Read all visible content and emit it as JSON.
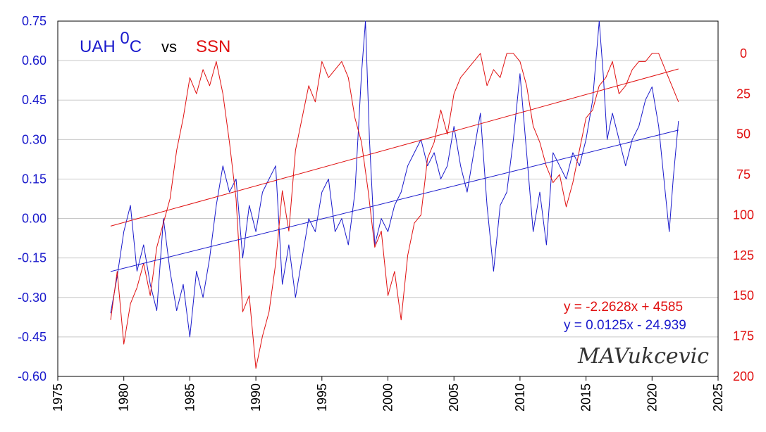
{
  "chart_data": {
    "type": "line",
    "title_parts": {
      "uah": "UAH ",
      "uah_sup": "0",
      "uah_unit": "C",
      "vs": "vs",
      "ssn": "SSN"
    },
    "x_ticks": [
      "1975",
      "1980",
      "1985",
      "1990",
      "1995",
      "2000",
      "2005",
      "2010",
      "2015",
      "2020",
      "2025"
    ],
    "x_range": [
      1975,
      2025
    ],
    "y_left_ticks": [
      "0.75",
      "0.60",
      "0.45",
      "0.30",
      "0.15",
      "0.00",
      "-0.15",
      "-0.30",
      "-0.45",
      "-0.60"
    ],
    "y_left_range": [
      -0.6,
      0.75
    ],
    "y_right_ticks": [
      "0",
      "25",
      "50",
      "75",
      "100",
      "125",
      "150",
      "175",
      "200"
    ],
    "y_right_range_inverted": [
      200,
      -20
    ],
    "grid": "horizontal",
    "colors": {
      "uah": "#1a1acc",
      "ssn": "#e01010"
    },
    "series": [
      {
        "name": "UAH",
        "axis": "left",
        "x": [
          1979.0,
          1979.5,
          1980.0,
          1980.5,
          1981.0,
          1981.5,
          1982.0,
          1982.5,
          1983.0,
          1983.5,
          1984.0,
          1984.5,
          1985.0,
          1985.5,
          1986.0,
          1986.5,
          1987.0,
          1987.5,
          1988.0,
          1988.5,
          1989.0,
          1989.5,
          1990.0,
          1990.5,
          1991.0,
          1991.5,
          1992.0,
          1992.5,
          1993.0,
          1993.5,
          1994.0,
          1994.5,
          1995.0,
          1995.5,
          1996.0,
          1996.5,
          1997.0,
          1997.5,
          1998.0,
          1998.3,
          1998.6,
          1999.0,
          1999.5,
          2000.0,
          2000.5,
          2001.0,
          2001.5,
          2002.0,
          2002.5,
          2003.0,
          2003.5,
          2004.0,
          2004.5,
          2005.0,
          2005.5,
          2006.0,
          2006.5,
          2007.0,
          2007.5,
          2008.0,
          2008.5,
          2009.0,
          2009.5,
          2010.0,
          2010.5,
          2011.0,
          2011.5,
          2012.0,
          2012.5,
          2013.0,
          2013.5,
          2014.0,
          2014.5,
          2015.0,
          2015.5,
          2016.0,
          2016.3,
          2016.6,
          2017.0,
          2017.5,
          2018.0,
          2018.5,
          2019.0,
          2019.5,
          2020.0,
          2020.5,
          2021.0,
          2021.3,
          2021.6,
          2022.0
        ],
        "values": [
          -0.36,
          -0.22,
          -0.05,
          0.05,
          -0.2,
          -0.1,
          -0.25,
          -0.35,
          0.0,
          -0.2,
          -0.35,
          -0.25,
          -0.45,
          -0.2,
          -0.3,
          -0.15,
          0.05,
          0.2,
          0.1,
          0.15,
          -0.15,
          0.05,
          -0.05,
          0.1,
          0.15,
          0.2,
          -0.25,
          -0.1,
          -0.3,
          -0.15,
          0.0,
          -0.05,
          0.1,
          0.15,
          -0.05,
          0.0,
          -0.1,
          0.1,
          0.55,
          0.75,
          0.3,
          -0.1,
          0.0,
          -0.05,
          0.05,
          0.1,
          0.2,
          0.25,
          0.3,
          0.2,
          0.25,
          0.15,
          0.2,
          0.35,
          0.2,
          0.1,
          0.25,
          0.4,
          0.05,
          -0.2,
          0.05,
          0.1,
          0.3,
          0.55,
          0.25,
          -0.05,
          0.1,
          -0.1,
          0.25,
          0.2,
          0.15,
          0.25,
          0.2,
          0.3,
          0.45,
          0.75,
          0.55,
          0.3,
          0.4,
          0.3,
          0.2,
          0.3,
          0.35,
          0.45,
          0.5,
          0.35,
          0.1,
          -0.05,
          0.15,
          0.37
        ]
      },
      {
        "name": "SSN",
        "axis": "right",
        "x": [
          1979.0,
          1979.5,
          1980.0,
          1980.5,
          1981.0,
          1981.5,
          1982.0,
          1982.5,
          1983.0,
          1983.5,
          1984.0,
          1984.5,
          1985.0,
          1985.5,
          1986.0,
          1986.5,
          1987.0,
          1987.5,
          1988.0,
          1988.5,
          1989.0,
          1989.5,
          1990.0,
          1990.5,
          1991.0,
          1991.5,
          1992.0,
          1992.5,
          1993.0,
          1993.5,
          1994.0,
          1994.5,
          1995.0,
          1995.5,
          1996.0,
          1996.5,
          1997.0,
          1997.5,
          1998.0,
          1998.5,
          1999.0,
          1999.5,
          2000.0,
          2000.5,
          2001.0,
          2001.5,
          2002.0,
          2002.5,
          2003.0,
          2003.5,
          2004.0,
          2004.5,
          2005.0,
          2005.5,
          2006.0,
          2006.5,
          2007.0,
          2007.5,
          2008.0,
          2008.5,
          2009.0,
          2009.5,
          2010.0,
          2010.5,
          2011.0,
          2011.5,
          2012.0,
          2012.5,
          2013.0,
          2013.5,
          2014.0,
          2014.5,
          2015.0,
          2015.5,
          2016.0,
          2016.5,
          2017.0,
          2017.5,
          2018.0,
          2018.5,
          2019.0,
          2019.5,
          2020.0,
          2020.5,
          2021.0,
          2021.5,
          2022.0
        ],
        "values": [
          165,
          135,
          180,
          155,
          145,
          130,
          150,
          120,
          105,
          90,
          60,
          40,
          15,
          25,
          10,
          20,
          5,
          25,
          55,
          90,
          160,
          150,
          195,
          175,
          160,
          130,
          85,
          110,
          60,
          40,
          20,
          30,
          5,
          15,
          10,
          5,
          15,
          40,
          55,
          85,
          120,
          110,
          150,
          135,
          165,
          125,
          105,
          100,
          65,
          55,
          35,
          50,
          25,
          15,
          10,
          5,
          0,
          20,
          10,
          15,
          0,
          0,
          5,
          20,
          45,
          55,
          70,
          80,
          75,
          95,
          80,
          60,
          40,
          35,
          20,
          15,
          5,
          25,
          20,
          10,
          5,
          5,
          0,
          0,
          10,
          20,
          30
        ]
      }
    ],
    "trendlines": [
      {
        "series": "SSN",
        "equation": "y = -2.2628x + 4585"
      },
      {
        "series": "UAH",
        "equation": "y = 0.0125x - 24.939"
      }
    ],
    "signature": "MAVukcevic"
  }
}
